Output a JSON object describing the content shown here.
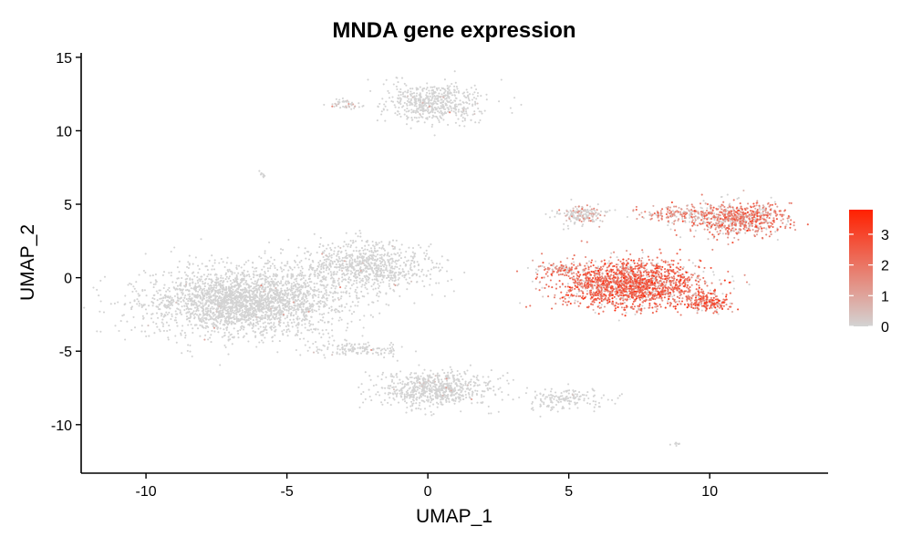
{
  "chart_data": {
    "type": "scatter",
    "title": "MNDA gene expression",
    "xlabel": "UMAP_1",
    "ylabel": "UMAP_2",
    "xlim": [
      -12.3,
      14.2
    ],
    "ylim": [
      -13.3,
      15.3
    ],
    "x_ticks": [
      -10,
      -5,
      0,
      5,
      10
    ],
    "y_ticks": [
      -10,
      -5,
      0,
      5,
      10,
      15
    ],
    "x_tick_labels": [
      "-10",
      "-5",
      "0",
      "5",
      "10"
    ],
    "y_tick_labels": [
      "-10",
      "-5",
      "0",
      "5",
      "10",
      "15"
    ],
    "grid": false,
    "legend": {
      "placement": "right",
      "min": 0,
      "max": 3.8,
      "ticks": [
        0,
        1,
        2,
        3
      ],
      "tick_labels": [
        "0",
        "1",
        "2",
        "3"
      ],
      "low_color": "#d3d3d3",
      "high_color": "#ff2000"
    },
    "clusters": [
      {
        "id": "left-large",
        "cx": -6.5,
        "cy": -1.6,
        "sx": 2.3,
        "sy": 1.5,
        "n": 2600,
        "expr_mean": 0.02,
        "expr_pos_frac": 0.01
      },
      {
        "id": "left-mid",
        "cx": -2.2,
        "cy": 0.8,
        "sx": 1.6,
        "sy": 1.1,
        "n": 800,
        "expr_mean": 0.02,
        "expr_pos_frac": 0.01
      },
      {
        "id": "bottom-center",
        "cx": 0.3,
        "cy": -7.6,
        "sx": 1.3,
        "sy": 0.8,
        "n": 700,
        "expr_mean": 0.03,
        "expr_pos_frac": 0.02
      },
      {
        "id": "bottom-tail",
        "cx": 4.9,
        "cy": -8.3,
        "sx": 0.9,
        "sy": 0.5,
        "n": 160,
        "expr_mean": 0.02,
        "expr_pos_frac": 0.01
      },
      {
        "id": "bottom-left-strand",
        "cx": -2.6,
        "cy": -4.9,
        "sx": 1.2,
        "sy": 0.35,
        "n": 140,
        "expr_mean": 0.02,
        "expr_pos_frac": 0.02
      },
      {
        "id": "top-center",
        "cx": 0.2,
        "cy": 11.9,
        "sx": 1.2,
        "sy": 0.9,
        "n": 550,
        "expr_mean": 0.03,
        "expr_pos_frac": 0.02
      },
      {
        "id": "top-left-small",
        "cx": -3.0,
        "cy": 11.8,
        "sx": 0.35,
        "sy": 0.25,
        "n": 45,
        "expr_mean": 0.5,
        "expr_pos_frac": 0.3
      },
      {
        "id": "tiny-left",
        "cx": -5.9,
        "cy": 7.0,
        "sx": 0.12,
        "sy": 0.12,
        "n": 10,
        "expr_mean": 0.0,
        "expr_pos_frac": 0.0
      },
      {
        "id": "right-main",
        "cx": 7.2,
        "cy": -0.4,
        "sx": 1.7,
        "sy": 1.1,
        "n": 1800,
        "expr_mean": 2.0,
        "expr_pos_frac": 0.85
      },
      {
        "id": "right-upper",
        "cx": 11.0,
        "cy": 4.0,
        "sx": 1.1,
        "sy": 0.75,
        "n": 700,
        "expr_mean": 1.6,
        "expr_pos_frac": 0.8
      },
      {
        "id": "right-bridge",
        "cx": 8.8,
        "cy": 4.3,
        "sx": 1.0,
        "sy": 0.35,
        "n": 160,
        "expr_mean": 1.2,
        "expr_pos_frac": 0.7
      },
      {
        "id": "right-topleft",
        "cx": 5.5,
        "cy": 4.3,
        "sx": 0.5,
        "sy": 0.45,
        "n": 180,
        "expr_mean": 0.6,
        "expr_pos_frac": 0.35
      },
      {
        "id": "right-lower",
        "cx": 9.9,
        "cy": -1.7,
        "sx": 0.55,
        "sy": 0.4,
        "n": 200,
        "expr_mean": 2.1,
        "expr_pos_frac": 0.85
      },
      {
        "id": "right-arm-left",
        "cx": 4.7,
        "cy": 0.6,
        "sx": 0.6,
        "sy": 0.25,
        "n": 90,
        "expr_mean": 1.4,
        "expr_pos_frac": 0.7
      },
      {
        "id": "tiny-right",
        "cx": 8.8,
        "cy": -11.3,
        "sx": 0.15,
        "sy": 0.07,
        "n": 10,
        "expr_mean": 0.0,
        "expr_pos_frac": 0.0
      }
    ]
  }
}
